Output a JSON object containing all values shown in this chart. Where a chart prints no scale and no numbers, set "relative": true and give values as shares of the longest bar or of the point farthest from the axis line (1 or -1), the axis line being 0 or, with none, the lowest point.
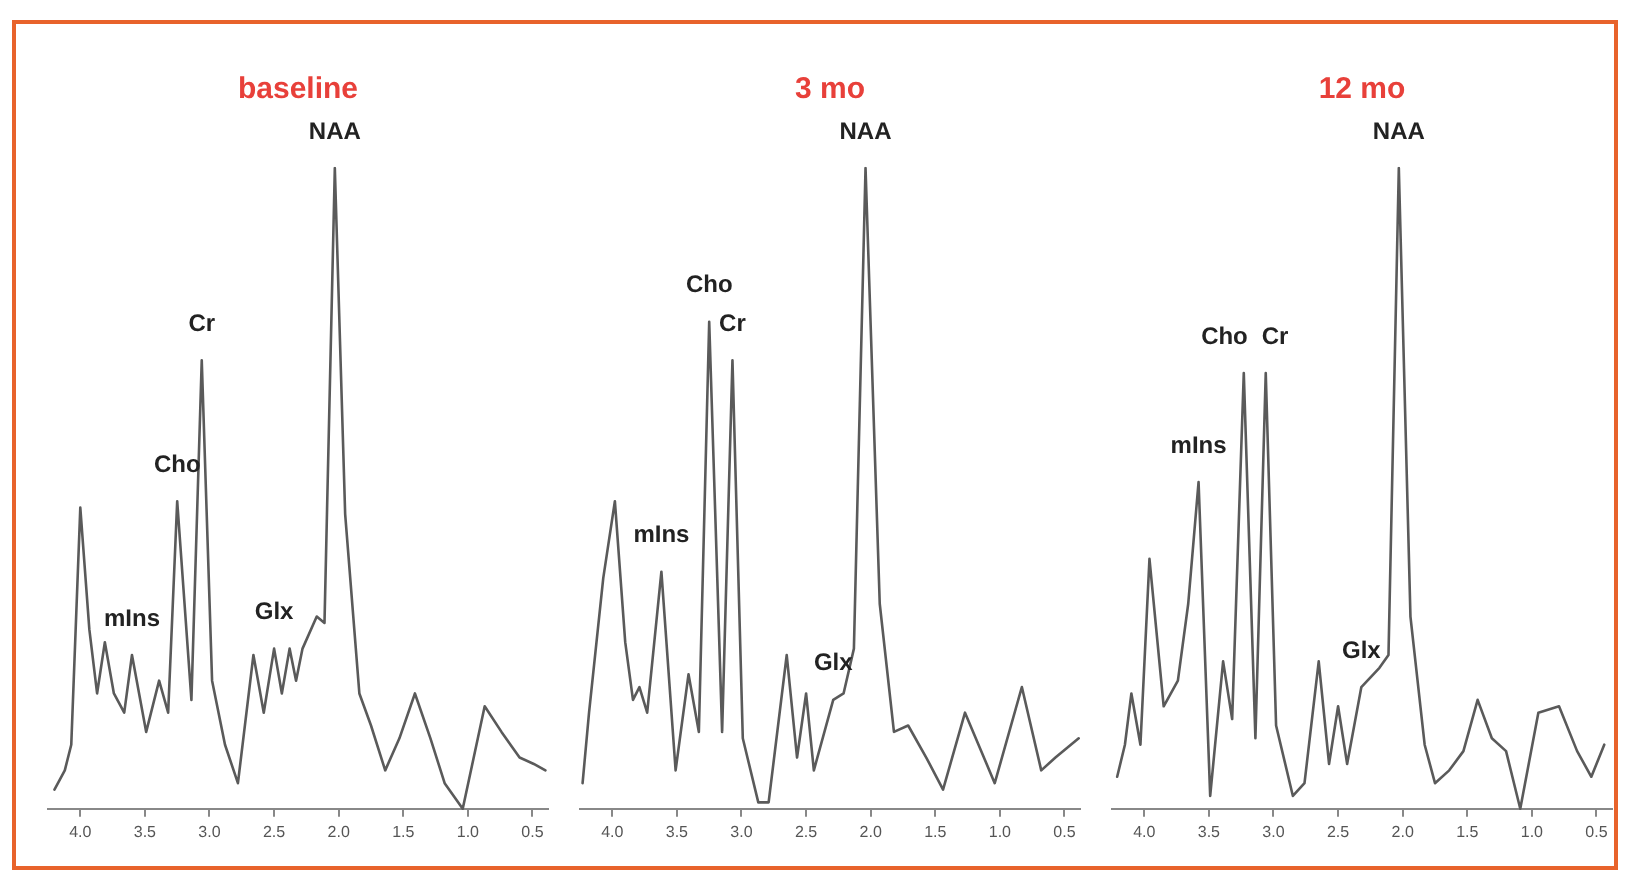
{
  "chart_data": [
    {
      "type": "line",
      "title": "baseline",
      "relative": true,
      "xlim": [
        4.25,
        0.38
      ],
      "xticks": [
        {
          "value": 4,
          "label": "4.0"
        },
        {
          "value": 3.5,
          "label": "3.5"
        },
        {
          "value": 3,
          "label": "3.0"
        },
        {
          "value": 2.5,
          "label": "2.5"
        },
        {
          "value": 2,
          "label": "2.0"
        },
        {
          "value": 1.5,
          "label": "1.5"
        },
        {
          "value": 1,
          "label": "1.0"
        },
        {
          "value": 0.5,
          "label": "0.5"
        }
      ],
      "marker": "none",
      "line_style": "solid",
      "series": [
        {
          "color": "#5a5a5a",
          "x": [
            4.2,
            4.12,
            4.07,
            4.0,
            3.93,
            3.87,
            3.81,
            3.74,
            3.66,
            3.6,
            3.49,
            3.39,
            3.32,
            3.25,
            3.14,
            3.06,
            2.98,
            2.88,
            2.78,
            2.66,
            2.58,
            2.5,
            2.44,
            2.38,
            2.33,
            2.28,
            2.17,
            2.11,
            2.03,
            1.95,
            1.84,
            1.75,
            1.64,
            1.53,
            1.41,
            1.29,
            1.18,
            1.04,
            0.87,
            0.74,
            0.6,
            0.49,
            0.4
          ],
          "values": [
            0.03,
            0.06,
            0.1,
            0.47,
            0.28,
            0.18,
            0.26,
            0.18,
            0.15,
            0.24,
            0.12,
            0.2,
            0.15,
            0.48,
            0.17,
            0.7,
            0.2,
            0.1,
            0.04,
            0.24,
            0.15,
            0.25,
            0.18,
            0.25,
            0.2,
            0.25,
            0.3,
            0.29,
            1.0,
            0.46,
            0.18,
            0.13,
            0.06,
            0.11,
            0.18,
            0.11,
            0.04,
            0.0,
            0.16,
            0.12,
            0.08,
            0.07,
            0.06
          ]
        }
      ],
      "annotations": [
        {
          "text": "NAA",
          "x": 2.03,
          "y": 1.0
        },
        {
          "text": "Cr",
          "x": 3.06,
          "y": 0.7
        },
        {
          "text": "Cho",
          "x": 3.25,
          "y": 0.48
        },
        {
          "text": "mIns",
          "x": 3.6,
          "y": 0.24
        },
        {
          "text": "Glx",
          "x": 2.5,
          "y": 0.25
        }
      ]
    },
    {
      "type": "line",
      "title": "3 mo",
      "relative": true,
      "xlim": [
        4.25,
        0.38
      ],
      "xticks": [
        {
          "value": 4,
          "label": "4.0"
        },
        {
          "value": 3.5,
          "label": "3.5"
        },
        {
          "value": 3,
          "label": "3.0"
        },
        {
          "value": 2.5,
          "label": "2.5"
        },
        {
          "value": 2,
          "label": "2.0"
        },
        {
          "value": 1.5,
          "label": "1.5"
        },
        {
          "value": 1,
          "label": "1.0"
        },
        {
          "value": 0.5,
          "label": "0.5"
        }
      ],
      "marker": "none",
      "line_style": "solid",
      "series": [
        {
          "color": "#5a5a5a",
          "x": [
            4.23,
            4.18,
            4.07,
            3.98,
            3.9,
            3.84,
            3.79,
            3.73,
            3.62,
            3.51,
            3.41,
            3.33,
            3.25,
            3.15,
            3.07,
            2.99,
            2.87,
            2.79,
            2.65,
            2.57,
            2.5,
            2.44,
            2.29,
            2.21,
            2.13,
            2.04,
            1.93,
            1.82,
            1.71,
            1.57,
            1.44,
            1.27,
            1.04,
            0.83,
            0.68,
            0.57,
            0.39
          ],
          "values": [
            0.04,
            0.15,
            0.36,
            0.48,
            0.26,
            0.17,
            0.19,
            0.15,
            0.37,
            0.06,
            0.21,
            0.12,
            0.76,
            0.12,
            0.7,
            0.11,
            0.01,
            0.01,
            0.24,
            0.08,
            0.18,
            0.06,
            0.17,
            0.18,
            0.25,
            1.0,
            0.32,
            0.12,
            0.13,
            0.08,
            0.03,
            0.15,
            0.04,
            0.19,
            0.06,
            0.08,
            0.11
          ]
        }
      ],
      "annotations": [
        {
          "text": "NAA",
          "x": 2.04,
          "y": 1.0
        },
        {
          "text": "Cho",
          "x": 3.25,
          "y": 0.76
        },
        {
          "text": "Cr",
          "x": 3.07,
          "y": 0.7
        },
        {
          "text": "mIns",
          "x": 3.62,
          "y": 0.37
        },
        {
          "text": "Glx",
          "x": 2.29,
          "y": 0.17
        }
      ]
    },
    {
      "type": "line",
      "title": "12 mo",
      "relative": true,
      "xlim": [
        4.25,
        0.38
      ],
      "xticks": [
        {
          "value": 4,
          "label": "4.0"
        },
        {
          "value": 3.5,
          "label": "3.5"
        },
        {
          "value": 3,
          "label": "3.0"
        },
        {
          "value": 2.5,
          "label": "2.5"
        },
        {
          "value": 2,
          "label": "2.0"
        },
        {
          "value": 1.5,
          "label": "1.5"
        },
        {
          "value": 1,
          "label": "1.0"
        },
        {
          "value": 0.5,
          "label": "0.5"
        }
      ],
      "marker": "none",
      "line_style": "solid",
      "series": [
        {
          "color": "#5a5a5a",
          "x": [
            4.21,
            4.15,
            4.1,
            4.03,
            3.96,
            3.85,
            3.74,
            3.66,
            3.58,
            3.49,
            3.39,
            3.32,
            3.23,
            3.14,
            3.06,
            2.98,
            2.85,
            2.76,
            2.65,
            2.57,
            2.5,
            2.43,
            2.32,
            2.18,
            2.11,
            2.03,
            1.94,
            1.83,
            1.75,
            1.64,
            1.53,
            1.42,
            1.31,
            1.2,
            1.09,
            0.95,
            0.79,
            0.65,
            0.54,
            0.44
          ],
          "values": [
            0.05,
            0.1,
            0.18,
            0.1,
            0.39,
            0.16,
            0.2,
            0.32,
            0.51,
            0.02,
            0.23,
            0.14,
            0.68,
            0.11,
            0.68,
            0.13,
            0.02,
            0.04,
            0.23,
            0.07,
            0.16,
            0.07,
            0.19,
            0.22,
            0.24,
            1.0,
            0.3,
            0.1,
            0.04,
            0.06,
            0.09,
            0.17,
            0.11,
            0.09,
            0.0,
            0.15,
            0.16,
            0.09,
            0.05,
            0.1
          ]
        }
      ],
      "annotations": [
        {
          "text": "NAA",
          "x": 2.03,
          "y": 1.0
        },
        {
          "text": "Cho",
          "x": 3.23,
          "y": 0.68
        },
        {
          "text": "Cr",
          "x": 3.06,
          "y": 0.68
        },
        {
          "text": "mIns",
          "x": 3.58,
          "y": 0.51
        },
        {
          "text": "Glx",
          "x": 2.32,
          "y": 0.19
        }
      ]
    }
  ]
}
